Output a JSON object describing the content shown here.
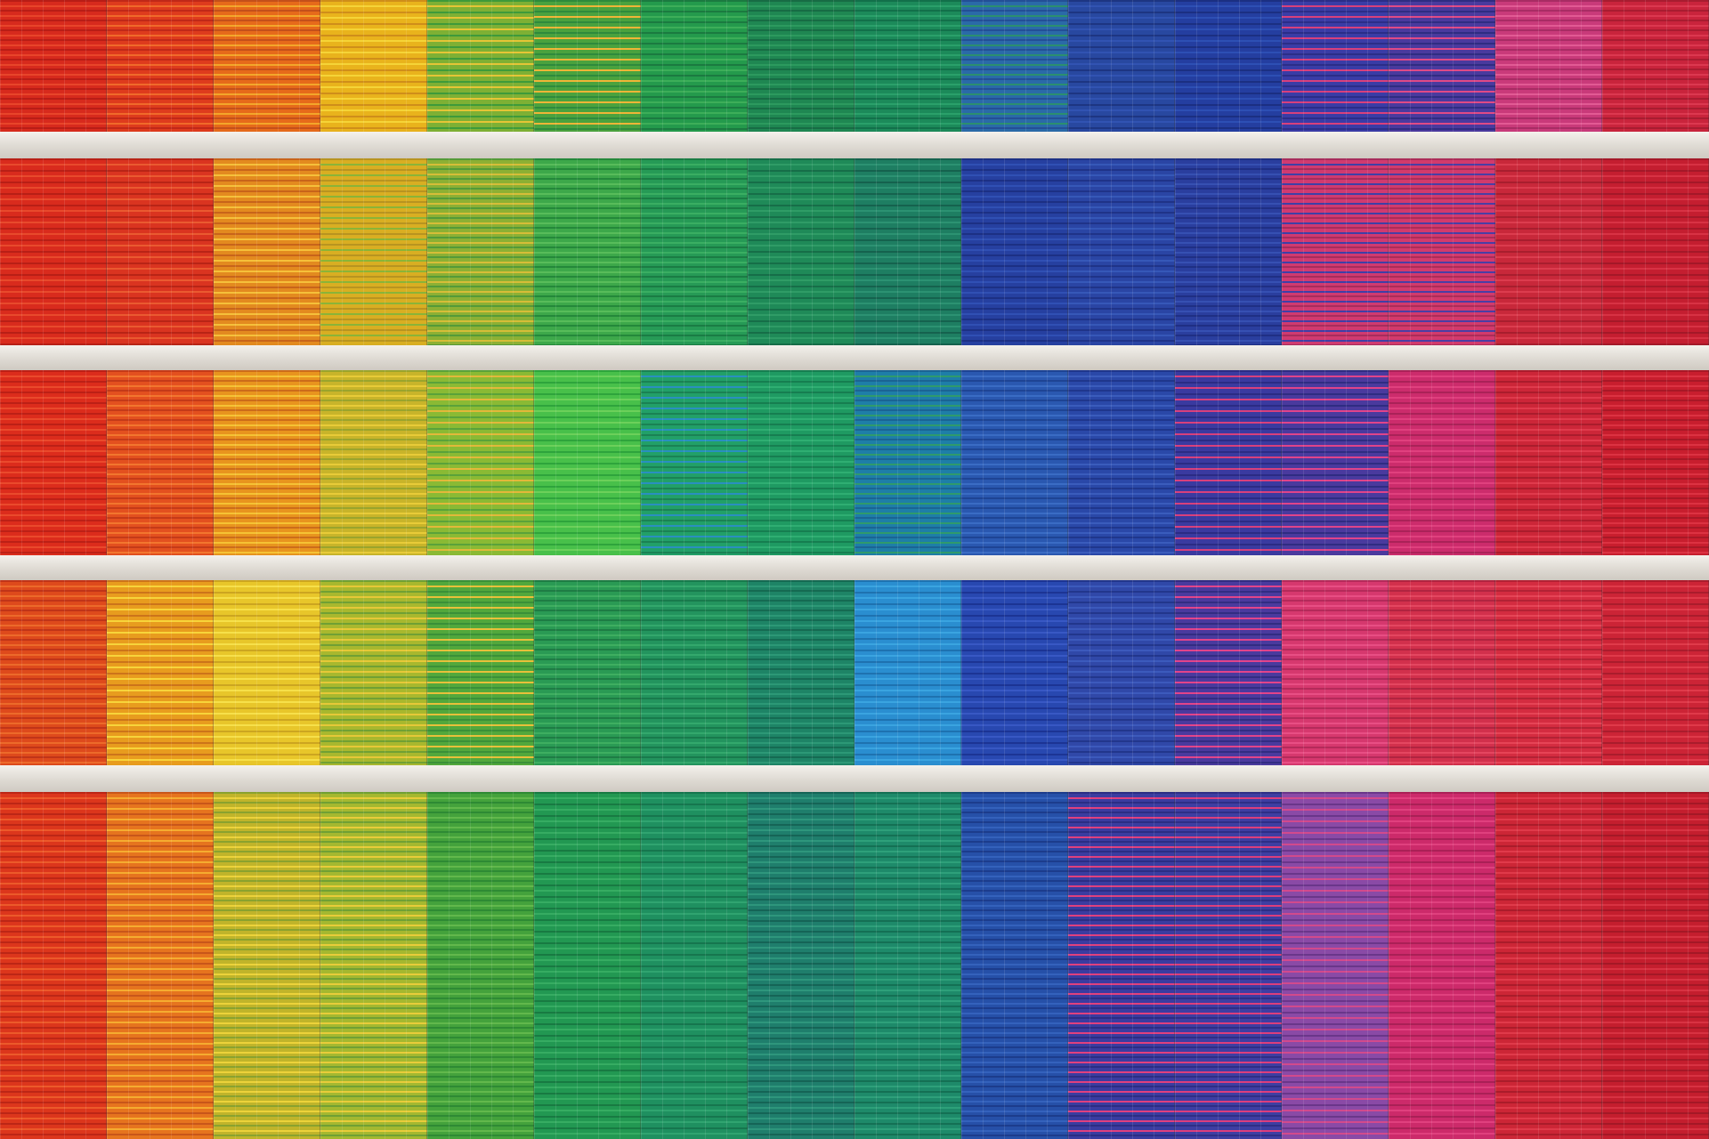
{
  "scene": {
    "subject": "building-facade-blinds",
    "slab_color": "#e9e5df",
    "floors": [
      {
        "palette": [
          [
            "#d72a1d",
            "#e8452a",
            "#b81d16"
          ],
          [
            "#de3b1d",
            "#f06a2a",
            "#c02818"
          ],
          [
            "#e66a1a",
            "#f3a62a",
            "#c4501a"
          ],
          [
            "#e9b31c",
            "#f5d437",
            "#cf8e1a"
          ],
          [
            "#7eb034",
            "#e5c536",
            "#3e9a3a"
          ],
          [
            "#4aa23e",
            "#f0b537",
            "#2e8a3c"
          ],
          [
            "#249a4c",
            "#3dae59",
            "#1b7a40"
          ],
          [
            "#1f8752",
            "#2c9a5e",
            "#176c44"
          ],
          [
            "#1c8a5a",
            "#2aa06a",
            "#12704a"
          ],
          [
            "#2a6aa8",
            "#2b8f6f",
            "#234f96"
          ],
          [
            "#2848a0",
            "#3153b2",
            "#1d3582"
          ],
          [
            "#243ea0",
            "#2d4fb4",
            "#1b2f82"
          ],
          [
            "#3a3ca6",
            "#d8407c",
            "#2b2d88"
          ],
          [
            "#4a3a9e",
            "#e04a86",
            "#2f2c82"
          ],
          [
            "#c93a7a",
            "#e25a94",
            "#a82c64"
          ],
          [
            "#c9243c",
            "#dc3850",
            "#a81c30"
          ]
        ]
      },
      {
        "palette": [
          [
            "#d92b1d",
            "#e84a2c",
            "#b81f16"
          ],
          [
            "#da3420",
            "#ea5a30",
            "#b82416"
          ],
          [
            "#e38a1f",
            "#f5c03a",
            "#c8641a"
          ],
          [
            "#d9ae22",
            "#8ab438",
            "#b89420"
          ],
          [
            "#8cb034",
            "#d6bd38",
            "#549a38"
          ],
          [
            "#3da84a",
            "#58bc5a",
            "#24883a"
          ],
          [
            "#269a56",
            "#3aae62",
            "#1a7c44"
          ],
          [
            "#1f8a58",
            "#2f9c66",
            "#166e48"
          ],
          [
            "#1e7e62",
            "#2c9272",
            "#15624e"
          ],
          [
            "#2640a0",
            "#3050b4",
            "#1c3084"
          ],
          [
            "#2a45a4",
            "#3658b8",
            "#1f3388"
          ],
          [
            "#2a3e9e",
            "#3650b2",
            "#1f2f84"
          ],
          [
            "#d03a70",
            "#3f3fa6",
            "#a82c5c"
          ],
          [
            "#d23a6c",
            "#4a3ea4",
            "#ac2c58"
          ],
          [
            "#c8283a",
            "#dc3c4e",
            "#a81e2e"
          ],
          [
            "#c41e30",
            "#d83244",
            "#a41828"
          ]
        ]
      },
      {
        "palette": [
          [
            "#dc2c1c",
            "#ea4a2c",
            "#bc2016"
          ],
          [
            "#e3501f",
            "#f2762e",
            "#c43a18"
          ],
          [
            "#e8941e",
            "#f5c234",
            "#cc6c1a"
          ],
          [
            "#c8b42a",
            "#e8cb38",
            "#9aa42c"
          ],
          [
            "#8aba34",
            "#e2b83a",
            "#5aa23a"
          ],
          [
            "#48c04a",
            "#6cd05a",
            "#2ea43c"
          ],
          [
            "#22a068",
            "#2a8fc0",
            "#1a8254"
          ],
          [
            "#1f9a62",
            "#2fae72",
            "#167e50"
          ],
          [
            "#1e7ea8",
            "#2f9a6c",
            "#1a6494"
          ],
          [
            "#2a58b0",
            "#3a6cc4",
            "#1e4494"
          ],
          [
            "#2a48a8",
            "#3a5cbc",
            "#1f368c"
          ],
          [
            "#3a3aa0",
            "#d8407c",
            "#2b2b84"
          ],
          [
            "#4a3a9e",
            "#e0448a",
            "#2f2c82"
          ],
          [
            "#cc2c6c",
            "#e0407e",
            "#aa2258"
          ],
          [
            "#cc2638",
            "#e03a4c",
            "#aa1c2c"
          ],
          [
            "#c81e2e",
            "#dc3242",
            "#a81826"
          ]
        ]
      },
      {
        "palette": [
          [
            "#de4a1c",
            "#ec6a2a",
            "#c03418"
          ],
          [
            "#e89c1e",
            "#f7d43a",
            "#cc741a"
          ],
          [
            "#e8c62a",
            "#f6e04a",
            "#cca520"
          ],
          [
            "#a8b82e",
            "#e6c838",
            "#70a034"
          ],
          [
            "#52a83c",
            "#e8c03a",
            "#3a9038"
          ],
          [
            "#2a9a54",
            "#3eae60",
            "#1e7c44"
          ],
          [
            "#23945e",
            "#33a86c",
            "#187a4c"
          ],
          [
            "#1e8466",
            "#2c9876",
            "#156a52"
          ],
          [
            "#2a8ed0",
            "#3aa4e0",
            "#1e72b0"
          ],
          [
            "#2848b0",
            "#3858c4",
            "#1c3494"
          ],
          [
            "#3048a8",
            "#3c5abc",
            "#22368c"
          ],
          [
            "#4a3a9e",
            "#e2448a",
            "#322c82"
          ],
          [
            "#d6386e",
            "#e84e84",
            "#b42a5a"
          ],
          [
            "#d2304c",
            "#e44660",
            "#b02440"
          ],
          [
            "#d42c40",
            "#e64456",
            "#b22234"
          ],
          [
            "#cc2436",
            "#e03a4a",
            "#aa1c2c"
          ]
        ]
      },
      {
        "palette": [
          [
            "#dc361c",
            "#ec5a2a",
            "#bc2616"
          ],
          [
            "#e6741e",
            "#f5ac30",
            "#c8561a"
          ],
          [
            "#c0b42a",
            "#ecd23a",
            "#8aa22e"
          ],
          [
            "#a4b830",
            "#e8cc3a",
            "#70a034"
          ],
          [
            "#44a23c",
            "#62b84c",
            "#2e8a34"
          ],
          [
            "#229852",
            "#36ac62",
            "#187a42"
          ],
          [
            "#1f9060",
            "#30a470",
            "#16764e"
          ],
          [
            "#1f7e6c",
            "#2e967c",
            "#156456"
          ],
          [
            "#1e8a6a",
            "#2ea07a",
            "#147054"
          ],
          [
            "#2650a8",
            "#3462bc",
            "#1c3c8c"
          ],
          [
            "#3a3ca0",
            "#e0407e",
            "#2b2d84"
          ],
          [
            "#3e3ea2",
            "#dc3e7c",
            "#2e2e86"
          ],
          [
            "#8a4aa6",
            "#d24a8c",
            "#6a368a"
          ],
          [
            "#cc2a6a",
            "#e0407e",
            "#aa2056"
          ],
          [
            "#cc2636",
            "#e03a4a",
            "#aa1c2a"
          ],
          [
            "#c41e2e",
            "#d83242",
            "#a41826"
          ]
        ]
      }
    ]
  }
}
